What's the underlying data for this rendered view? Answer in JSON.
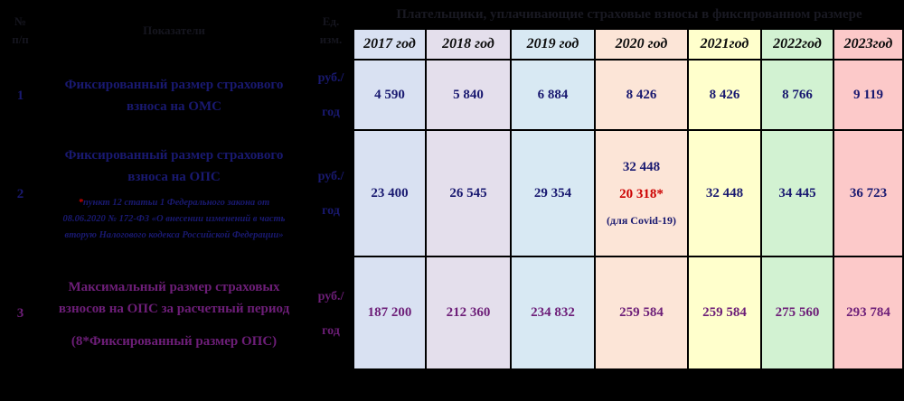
{
  "title": "Плательщики, уплачивающие страховые взносы в фиксированном размере",
  "header": {
    "num_top": "№",
    "num_bottom": "п/п",
    "indicators": "Показатели",
    "unit_top": "Ед.",
    "unit_bottom": "изм."
  },
  "years": [
    "2017 год",
    "2018 год",
    "2019 год",
    "2020 год",
    "2021год",
    "2022год",
    "2023год"
  ],
  "rows": [
    {
      "num": "1",
      "label": "Фиксированный размер страхового взноса на ОМС",
      "unit": {
        "line1": "руб./",
        "line2": "год"
      },
      "values": [
        "4 590",
        "5 840",
        "6 884",
        "8 426",
        "8 426",
        "8 766",
        "9 119"
      ]
    },
    {
      "num": "2",
      "label": "Фиксированный размер страхового взноса на ОПС",
      "footnote_star": "*",
      "footnote_text": "пункт 12 статьи 1 Федерального закона от 08.06.2020 № 172-ФЗ «О внесении изменений в часть вторую Налогового кодекса Российской Федерации»",
      "unit": {
        "line1": "руб./",
        "line2": "год"
      },
      "values_before_covid": [
        "23 400",
        "26 545",
        "29 354"
      ],
      "covid": {
        "line1": "32 448",
        "line2": "20 318*",
        "line3": "(для Covid-19)"
      },
      "values_after_covid": [
        "32 448",
        "34 445",
        "36 723"
      ]
    },
    {
      "num": "3",
      "label": "Максимальный размер страховых взносов на ОПС за расчетный период",
      "label2": "(8*Фиксированный размер ОПС)",
      "unit": {
        "line1": "руб./",
        "line2": "год"
      },
      "values": [
        "187 200",
        "212 360",
        "234 832",
        "259 584",
        "259 584",
        "275 560",
        "293 784"
      ]
    }
  ],
  "colors": {
    "background": "#000000",
    "column_backgrounds": [
      "#d9e1f2",
      "#e4dfec",
      "#d8e9f3",
      "#fce5d7",
      "#ffffcc",
      "#d2f2d2",
      "#fcc9c9"
    ],
    "navy_text": "#191970",
    "purple_text": "#6d1e78",
    "red_text": "#cc0000",
    "year_text": "#0d0d0d"
  }
}
